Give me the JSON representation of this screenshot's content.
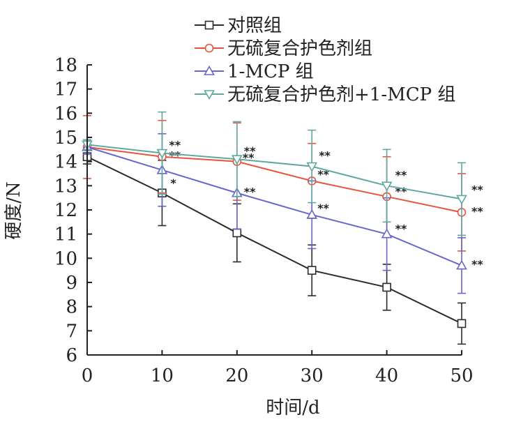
{
  "chart_data": {
    "type": "line",
    "xlabel": "时间/d",
    "ylabel": "硬度/N",
    "x": [
      0,
      10,
      20,
      30,
      40,
      50
    ],
    "xlim": [
      0,
      50
    ],
    "ylim": [
      6,
      18
    ],
    "xticks": [
      "0",
      "10",
      "20",
      "30",
      "40",
      "50"
    ],
    "yticks": [
      "6",
      "7",
      "8",
      "9",
      "10",
      "11",
      "12",
      "13",
      "14",
      "15",
      "16",
      "17",
      "18"
    ],
    "legend_position": "top",
    "grid": false,
    "series": [
      {
        "name": "对照组",
        "color": "#2b2b2b",
        "marker": "square",
        "values": [
          14.2,
          12.7,
          11.05,
          9.5,
          8.8,
          7.3
        ],
        "errors": [
          0.3,
          1.35,
          1.2,
          1.05,
          0.95,
          0.85
        ],
        "stars": [
          "",
          "",
          "",
          "",
          "",
          ""
        ]
      },
      {
        "name": "无硫复合护色剂组",
        "color": "#e8533d",
        "marker": "circle",
        "values": [
          14.6,
          14.2,
          14.0,
          13.2,
          12.55,
          11.9
        ],
        "errors": [
          1.3,
          1.5,
          1.6,
          1.55,
          1.65,
          1.6
        ],
        "stars": [
          "",
          "**",
          "**",
          "**",
          "**",
          "**"
        ]
      },
      {
        "name": "1-MCP 组",
        "color": "#6666cc",
        "marker": "triangle-up",
        "values": [
          14.6,
          13.65,
          12.7,
          11.8,
          11.0,
          9.7
        ],
        "errors": [
          0.3,
          1.5,
          1.5,
          1.4,
          1.5,
          1.15
        ],
        "stars": [
          "",
          "*",
          "**",
          "**",
          "**",
          "**"
        ]
      },
      {
        "name": "无硫复合护色剂+1-MCP 组",
        "color": "#5fa8a0",
        "marker": "triangle-down",
        "values": [
          14.7,
          14.35,
          14.1,
          13.8,
          13.0,
          12.45
        ],
        "errors": [
          0.2,
          1.7,
          1.55,
          1.5,
          1.5,
          1.5
        ],
        "stars": [
          "",
          "**",
          "**",
          "**",
          "**",
          "**"
        ]
      }
    ]
  }
}
